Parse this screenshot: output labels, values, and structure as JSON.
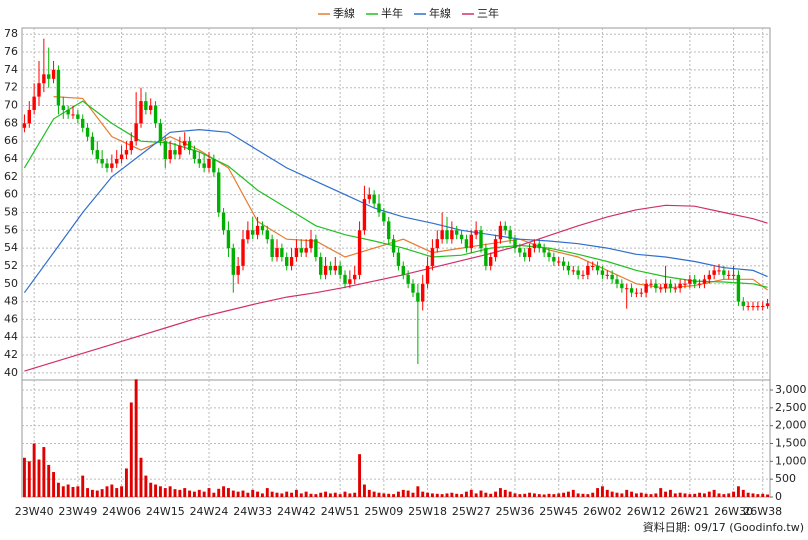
{
  "chart_data": {
    "type": "candlestick",
    "up_color": "#ff0000",
    "down_color": "#00b000",
    "grid": true,
    "legend": "top",
    "categories": [
      null,
      null,
      "23W40",
      null,
      null,
      null,
      null,
      null,
      null,
      null,
      null,
      "23W49",
      null,
      null,
      null,
      null,
      null,
      null,
      null,
      null,
      "24W06",
      null,
      null,
      null,
      null,
      null,
      null,
      null,
      null,
      "24W15",
      null,
      null,
      null,
      null,
      null,
      null,
      null,
      null,
      "24W24",
      null,
      null,
      null,
      null,
      null,
      null,
      null,
      null,
      "24W33",
      null,
      null,
      null,
      null,
      null,
      null,
      null,
      null,
      "24W42",
      null,
      null,
      null,
      null,
      null,
      null,
      null,
      null,
      "24W51",
      null,
      null,
      null,
      null,
      null,
      null,
      null,
      null,
      "25W09",
      null,
      null,
      null,
      null,
      null,
      null,
      null,
      null,
      "25W18",
      null,
      null,
      null,
      null,
      null,
      null,
      null,
      null,
      "25W27",
      null,
      null,
      null,
      null,
      null,
      null,
      null,
      null,
      "25W36",
      null,
      null,
      null,
      null,
      null,
      null,
      null,
      null,
      "25W45",
      null,
      null,
      null,
      null,
      null,
      null,
      null,
      null,
      "26W02",
      null,
      null,
      null,
      null,
      null,
      null,
      null,
      null,
      "26W12",
      null,
      null,
      null,
      null,
      null,
      null,
      null,
      null,
      "26W21",
      null,
      null,
      null,
      null,
      null,
      null,
      null,
      null,
      "26W30",
      null,
      null,
      null,
      null,
      null,
      "26W38",
      null
    ],
    "open": [
      67.5,
      68,
      69.5,
      71,
      72.5,
      73.5,
      73,
      74,
      70,
      69.5,
      69,
      69,
      68.5,
      67.5,
      66.5,
      65,
      64,
      63.5,
      63,
      63.5,
      64,
      64.5,
      65,
      66,
      68,
      70.5,
      69.5,
      70,
      68,
      66,
      64,
      65,
      64.5,
      65.5,
      66,
      65,
      64,
      63.5,
      63,
      64,
      62.5,
      58,
      56,
      54,
      51,
      52,
      55,
      56,
      55.5,
      56.5,
      56,
      55,
      53,
      54,
      53,
      52,
      53,
      54,
      53.5,
      54,
      55,
      53,
      51,
      52,
      51.5,
      52,
      51,
      50,
      50.5,
      51,
      56,
      59.5,
      60,
      59,
      58,
      57,
      55,
      53.5,
      52,
      51,
      50,
      49,
      48,
      50,
      52,
      54,
      55,
      56,
      55,
      56,
      55.5,
      55,
      54,
      55.5,
      56,
      54,
      52,
      53,
      55,
      56.5,
      56,
      55,
      54,
      53.5,
      53,
      54,
      54.5,
      54,
      53.5,
      53,
      52.5,
      52.5,
      52,
      51.5,
      51.5,
      51,
      51,
      52,
      52,
      51.5,
      51,
      51,
      50.5,
      50,
      49.5,
      49.5,
      49,
      49,
      49,
      50,
      50,
      49.5,
      49.5,
      50,
      49.5,
      49.5,
      50,
      50,
      50.5,
      50,
      50,
      50.5,
      51,
      51.5,
      51.5,
      51,
      51,
      51,
      48,
      47.5,
      47.5,
      47.5,
      47.5,
      47.5
    ],
    "high": [
      69,
      70.5,
      72.5,
      75,
      77.5,
      76.5,
      75,
      74.5,
      71,
      70,
      70,
      69.5,
      69,
      68,
      67,
      66,
      65,
      64,
      64.5,
      65,
      65.5,
      66,
      67,
      71.5,
      72,
      71.5,
      70.8,
      70.5,
      68.5,
      66.5,
      66,
      65.8,
      66.5,
      67,
      66.5,
      65.5,
      64.8,
      64.5,
      64.8,
      64.5,
      63,
      58.5,
      57,
      54.5,
      53,
      56,
      57,
      57.5,
      57.5,
      57,
      56.5,
      55.5,
      55,
      54.5,
      53.5,
      54,
      55,
      55,
      55,
      56,
      55.5,
      53.5,
      53,
      52.5,
      53,
      52.5,
      51.5,
      51.5,
      52,
      57,
      61,
      60.8,
      60.5,
      60,
      58.5,
      57.5,
      55.5,
      54,
      52.5,
      51.5,
      50.5,
      50,
      51,
      53,
      55,
      56,
      58,
      57.5,
      57,
      56.5,
      56,
      55.5,
      56,
      57,
      56.5,
      54.5,
      53.5,
      55.5,
      57,
      57,
      56.5,
      55.5,
      54.5,
      54,
      54.5,
      55,
      55,
      54.5,
      54,
      53.5,
      53,
      53,
      52.5,
      52,
      52,
      51.5,
      52.5,
      52.5,
      52.5,
      52,
      51.5,
      51.5,
      51,
      50.5,
      50,
      50,
      49.5,
      49.5,
      50.5,
      50.5,
      50.5,
      50,
      52,
      50.5,
      50,
      50.5,
      50.5,
      51,
      51,
      50.5,
      51,
      51.5,
      52,
      52.2,
      52,
      51.5,
      52,
      51.5,
      48.5,
      48,
      48,
      48,
      48,
      48.3
    ],
    "low": [
      67,
      67.5,
      69,
      70,
      71.5,
      72,
      72.5,
      69,
      68.5,
      68.5,
      68.5,
      68,
      67,
      66,
      64.5,
      63.5,
      63,
      62.5,
      62.5,
      63,
      63.5,
      64,
      64.5,
      65.5,
      67.5,
      69,
      69,
      67.5,
      65.5,
      63,
      63.5,
      64,
      64,
      65,
      64.5,
      63.5,
      63,
      62.5,
      62.5,
      62,
      57.5,
      55.5,
      53,
      49,
      50,
      51.5,
      54.5,
      55,
      55,
      55.5,
      54.5,
      52.5,
      52.5,
      52.5,
      51.5,
      51.5,
      52.5,
      53,
      53,
      53.5,
      52.5,
      50.5,
      50.5,
      51,
      51,
      50.5,
      49.5,
      49.5,
      50,
      50.5,
      55.5,
      59,
      58.5,
      57.5,
      56.5,
      54.5,
      53,
      51.5,
      50.5,
      49.5,
      48.5,
      41,
      47,
      49.5,
      51.5,
      53.5,
      54.5,
      54.5,
      54.5,
      55,
      54.5,
      53.5,
      53.5,
      55,
      53.5,
      51.5,
      51.5,
      52.5,
      54.5,
      55.5,
      54.5,
      53.5,
      53,
      52.5,
      52.5,
      53.5,
      53.5,
      53,
      52.5,
      52,
      52,
      51.5,
      51,
      51,
      50.5,
      50.5,
      50.5,
      51.5,
      51,
      50.5,
      50.5,
      50,
      49.5,
      49,
      47.2,
      48.5,
      48.5,
      48.5,
      48.5,
      49.5,
      49,
      49,
      49,
      49,
      49,
      49,
      49.5,
      49.5,
      49.5,
      49.5,
      49.5,
      50,
      50.5,
      51,
      50.5,
      50.5,
      50.5,
      47.5,
      47,
      47,
      47,
      47,
      47,
      47.2
    ],
    "close": [
      68,
      69.5,
      71,
      72.5,
      73.5,
      73,
      74,
      70,
      69.5,
      69,
      69,
      68.5,
      67.5,
      66.5,
      65,
      64,
      63.5,
      63,
      63.5,
      64,
      64.5,
      65,
      66,
      68,
      70.5,
      69.5,
      70,
      68,
      66,
      64,
      65,
      64.5,
      65.5,
      66,
      65,
      64,
      63.5,
      63,
      64,
      62.5,
      58,
      56,
      54,
      51,
      52,
      55,
      56,
      55.5,
      56.5,
      56,
      55,
      53,
      54,
      53,
      52,
      53,
      54,
      53.5,
      54,
      55,
      53,
      51,
      52,
      51.5,
      52,
      51,
      50,
      50.5,
      51,
      56,
      59.5,
      60,
      59,
      58,
      57,
      55,
      53.5,
      52,
      51,
      50,
      49,
      48,
      50,
      52,
      54,
      55,
      56,
      55,
      56,
      55.5,
      55,
      54,
      55.5,
      56,
      54,
      52,
      53,
      55,
      56.5,
      56,
      55,
      54,
      53.5,
      53,
      54,
      54.5,
      54,
      53.5,
      53,
      52.5,
      52.5,
      52,
      51.5,
      51.5,
      51,
      51,
      52,
      52,
      51.5,
      51,
      51,
      50.5,
      50,
      49.5,
      49.5,
      49,
      49,
      49,
      50,
      50,
      49.5,
      49.5,
      50,
      49.5,
      49.5,
      50,
      50,
      50.5,
      50,
      50,
      50.5,
      51,
      51.5,
      51.5,
      51,
      51,
      51,
      48,
      47.5,
      47.5,
      47.5,
      47.5,
      47.5,
      47.8
    ],
    "volume": {
      "axis": "y2",
      "color": "#e00000",
      "values": [
        1100,
        1000,
        1500,
        1050,
        1400,
        900,
        700,
        400,
        300,
        350,
        280,
        300,
        600,
        250,
        200,
        180,
        220,
        300,
        350,
        250,
        300,
        800,
        2650,
        3300,
        1100,
        600,
        400,
        350,
        300,
        250,
        300,
        220,
        200,
        250,
        180,
        150,
        200,
        150,
        250,
        120,
        230,
        300,
        250,
        180,
        150,
        180,
        120,
        200,
        150,
        100,
        250,
        150,
        120,
        100,
        150,
        120,
        200,
        100,
        150,
        90,
        80,
        120,
        150,
        100,
        120,
        80,
        150,
        100,
        120,
        1200,
        350,
        200,
        150,
        120,
        100,
        90,
        80,
        150,
        200,
        180,
        120,
        300,
        150,
        120,
        100,
        90,
        80,
        100,
        120,
        90,
        80,
        150,
        200,
        100,
        180,
        120,
        90,
        150,
        250,
        200,
        150,
        100,
        80,
        90,
        120,
        100,
        80,
        70,
        90,
        80,
        100,
        120,
        150,
        200,
        100,
        90,
        80,
        120,
        250,
        300,
        200,
        150,
        120,
        100,
        200,
        150,
        100,
        120,
        90,
        80,
        100,
        250,
        150,
        200,
        100,
        120,
        100,
        80,
        90,
        120,
        100,
        150,
        200,
        100,
        80,
        100,
        150,
        300,
        200,
        120,
        100,
        80,
        90,
        70
      ]
    },
    "series": [
      {
        "name": "季線",
        "color": "#e87a2c",
        "x": [
          6,
          12,
          18,
          24,
          30,
          36,
          42,
          48,
          54,
          60,
          66,
          72,
          78,
          84,
          90,
          96,
          102,
          108,
          114,
          120,
          126,
          132,
          138,
          144,
          150,
          153
        ],
        "values": [
          71,
          70.8,
          66.5,
          65,
          66.5,
          65,
          63,
          57,
          55,
          54.8,
          53,
          54,
          55,
          53.5,
          54,
          54.5,
          55,
          53.8,
          53,
          51.5,
          50,
          49.5,
          49.8,
          50.5,
          50.5,
          49.3
        ]
      },
      {
        "name": "半年",
        "color": "#22c022",
        "x": [
          0,
          6,
          12,
          18,
          24,
          30,
          36,
          42,
          48,
          54,
          60,
          66,
          72,
          78,
          84,
          90,
          96,
          102,
          108,
          114,
          120,
          126,
          132,
          138,
          144,
          150,
          153
        ],
        "values": [
          63,
          68.5,
          70.5,
          68,
          66,
          65.8,
          64.8,
          63.2,
          60.5,
          58.5,
          56.5,
          55.5,
          54.8,
          54,
          53,
          53.2,
          54,
          54.3,
          54,
          53.3,
          52.5,
          51.5,
          50.8,
          50.3,
          50.2,
          50,
          49.6
        ]
      },
      {
        "name": "年線",
        "color": "#2f6fd0",
        "x": [
          0,
          6,
          12,
          18,
          24,
          30,
          36,
          42,
          48,
          54,
          60,
          66,
          72,
          78,
          84,
          90,
          96,
          102,
          108,
          114,
          120,
          126,
          132,
          138,
          144,
          150,
          153
        ],
        "values": [
          49,
          53.5,
          58,
          62,
          64.5,
          67,
          67.3,
          67,
          65,
          63,
          61.5,
          60,
          58.5,
          57.5,
          56.8,
          56,
          55.5,
          55,
          54.8,
          54.5,
          54,
          53.3,
          53,
          52.5,
          51.8,
          51.5,
          50.8
        ]
      },
      {
        "name": "三年",
        "color": "#d0306a",
        "x": [
          0,
          6,
          12,
          18,
          24,
          30,
          36,
          42,
          48,
          54,
          60,
          66,
          72,
          78,
          84,
          90,
          96,
          102,
          108,
          114,
          120,
          126,
          132,
          138,
          144,
          150,
          153
        ],
        "values": [
          40.2,
          41.2,
          42.2,
          43.2,
          44.2,
          45.2,
          46.2,
          47,
          47.8,
          48.5,
          49,
          49.6,
          50.3,
          51,
          51.8,
          52.6,
          53.4,
          54.3,
          55.4,
          56.5,
          57.5,
          58.3,
          58.8,
          58.7,
          58,
          57.3,
          56.8
        ]
      }
    ],
    "ylim": [
      39.2,
      78.7
    ],
    "yticks": [
      40,
      42,
      44,
      46,
      48,
      50,
      52,
      54,
      56,
      58,
      60,
      62,
      64,
      66,
      68,
      70,
      72,
      74,
      76,
      78
    ],
    "y2lim": [
      0,
      3280
    ],
    "y2ticks": [
      0,
      500,
      {
        "value": 1000,
        "label": "1,000"
      },
      {
        "value": 1500,
        "label": "1,500"
      },
      {
        "value": 2000,
        "label": "2,000"
      },
      {
        "value": 2500,
        "label": "2,500"
      },
      {
        "value": 3000,
        "label": "3,000"
      }
    ],
    "note": "資料日期: 09/17  (Goodinfo.tw)"
  }
}
